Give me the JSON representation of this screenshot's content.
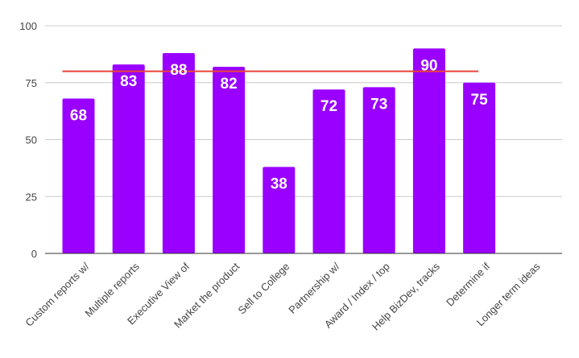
{
  "chart_data": {
    "type": "bar",
    "categories": [
      "Custom reports w/",
      "Multiple reports",
      "Executive View of",
      "Market the product",
      "Sell to College",
      "Partnership w/",
      "Award / Index / top",
      "Help BizDev, tracks",
      "Determine if",
      "Longer term ideas"
    ],
    "values": [
      68,
      83,
      88,
      82,
      38,
      72,
      73,
      90,
      75,
      null
    ],
    "data_labels": [
      "68",
      "83",
      "88",
      "82",
      "38",
      "72",
      "73",
      "90",
      "75",
      ""
    ],
    "ylim": [
      0,
      100
    ],
    "yticks": [
      0,
      25,
      50,
      75,
      100
    ],
    "ytick_labels": [
      "0",
      "25",
      "50",
      "75",
      "100"
    ],
    "reference_line": {
      "value": 80,
      "from_category": 0,
      "to_category": 8,
      "color": "#ea4335"
    },
    "bar_color": "#9900ff",
    "grid": true,
    "legend": "none",
    "title": "",
    "xlabel": "",
    "ylabel": ""
  }
}
